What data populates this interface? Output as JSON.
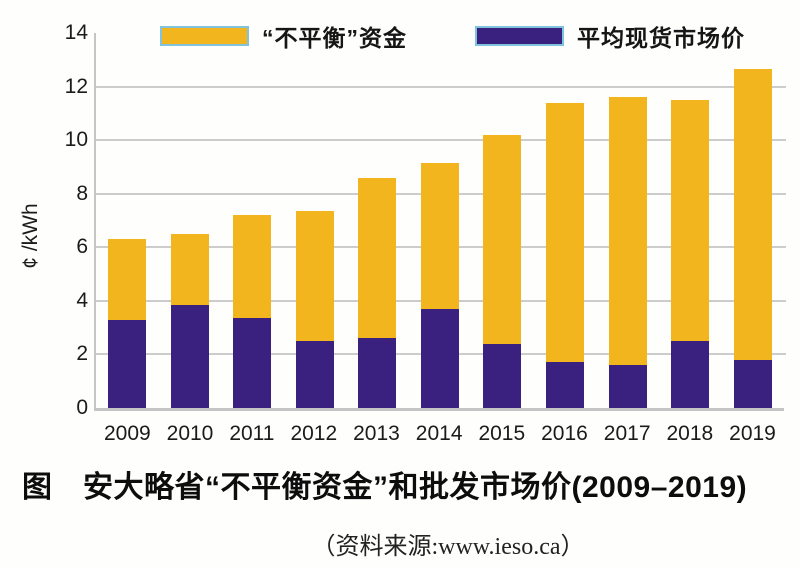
{
  "title": "图　安大略省“不平衡资金”和批发市场价(2009–2019)",
  "source": "（资料来源:www.ieso.ca）",
  "chart_data": {
    "type": "bar",
    "stacked": true,
    "title": "安大略省“不平衡资金”和批发市场价(2009–2019)",
    "xlabel": "",
    "ylabel": "¢ /kWh",
    "ylim": [
      0,
      14
    ],
    "yticks": [
      0,
      2,
      4,
      6,
      8,
      10,
      12,
      14
    ],
    "grid": true,
    "legend_position": "top",
    "legend_swatch_border": "#7fc3dc",
    "categories": [
      "2009",
      "2010",
      "2011",
      "2012",
      "2013",
      "2014",
      "2015",
      "2016",
      "2017",
      "2018",
      "2019"
    ],
    "series": [
      {
        "name": "“不平衡”资金",
        "color": "#f2b51e",
        "values": [
          3.0,
          2.65,
          3.85,
          4.85,
          6.0,
          5.45,
          7.8,
          9.7,
          10.0,
          9.0,
          10.85
        ]
      },
      {
        "name": "平均现货市场价",
        "color": "#3a2180",
        "values": [
          3.3,
          3.85,
          3.35,
          2.5,
          2.6,
          3.7,
          2.4,
          1.7,
          1.6,
          2.5,
          1.8
        ]
      }
    ],
    "stack_bottom_to_top": [
      1,
      0
    ],
    "totals": [
      6.3,
      6.5,
      7.2,
      7.35,
      8.6,
      9.15,
      10.2,
      11.4,
      11.6,
      11.5,
      12.65
    ],
    "gridline_color": "#cccccc",
    "axis_color": "#c5c5c5"
  }
}
